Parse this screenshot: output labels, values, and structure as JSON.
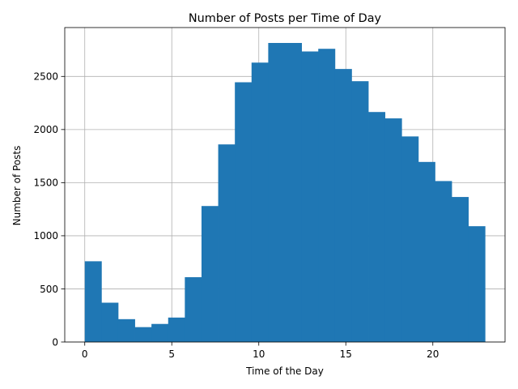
{
  "chart_data": {
    "type": "bar",
    "title": "Number of Posts per Time of Day",
    "xlabel": "Time of the Day",
    "ylabel": "Number of Posts",
    "bin_edges": [
      0,
      0.958,
      1.917,
      2.875,
      3.833,
      4.792,
      5.75,
      6.708,
      7.667,
      8.625,
      9.583,
      10.542,
      11.5,
      12.458,
      13.417,
      14.375,
      15.333,
      16.292,
      17.25,
      18.208,
      19.167,
      20.125,
      21.083,
      22.042,
      23
    ],
    "values": [
      760,
      370,
      215,
      140,
      170,
      230,
      610,
      1280,
      1860,
      2445,
      2630,
      2815,
      2815,
      2735,
      2760,
      2570,
      2455,
      2165,
      2105,
      1935,
      1695,
      1515,
      1365,
      1090
    ],
    "xlim": [
      -1.15,
      24.15
    ],
    "ylim": [
      0,
      2960
    ],
    "x_ticks": [
      0,
      5,
      10,
      15,
      20
    ],
    "x_tick_labels": [
      "0",
      "5",
      "10",
      "15",
      "20"
    ],
    "y_ticks": [
      0,
      500,
      1000,
      1500,
      2000,
      2500
    ],
    "y_tick_labels": [
      "0",
      "500",
      "1000",
      "1500",
      "2000",
      "2500"
    ],
    "grid": true,
    "bar_color": "#1f77b4",
    "grid_color": "#b0b0b0"
  }
}
